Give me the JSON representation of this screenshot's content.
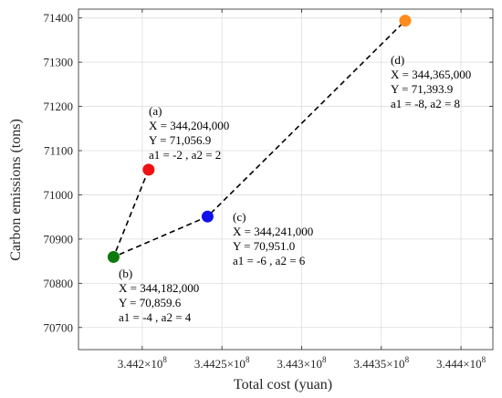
{
  "chart_data": {
    "type": "scatter",
    "xlabel": "Total cost (yuan)",
    "ylabel": "Carbon emissions (tons)",
    "xlim": [
      344160000,
      344420000
    ],
    "ylim": [
      70650,
      71420
    ],
    "grid": true,
    "x_ticks": [
      344200000,
      344250000,
      344300000,
      344350000,
      344400000
    ],
    "x_tick_labels": [
      {
        "mantissa": "3.442",
        "sup": "8"
      },
      {
        "mantissa": "3.4425",
        "sup": "8"
      },
      {
        "mantissa": "3.443",
        "sup": "8"
      },
      {
        "mantissa": "3.4435",
        "sup": "8"
      },
      {
        "mantissa": "3.444",
        "sup": "8"
      }
    ],
    "x_tick_times": "×10",
    "y_ticks": [
      70700,
      70800,
      70900,
      71000,
      71100,
      71200,
      71300,
      71400
    ],
    "y_tick_labels": [
      "70700",
      "70800",
      "70900",
      "71000",
      "71100",
      "71200",
      "71300",
      "71400"
    ],
    "line_style": "dashed",
    "path_order": [
      "a",
      "b",
      "c",
      "d"
    ],
    "points": [
      {
        "id": "a",
        "x": 344204000,
        "y": 71056.9,
        "color": "#ee1111",
        "lines": [
          "(a)",
          "X =   344,204,000",
          "Y =   71,056.9",
          "a1 = -2 , a2 = 2"
        ]
      },
      {
        "id": "b",
        "x": 344182000,
        "y": 70859.6,
        "color": "#0b7a0b",
        "lines": [
          "(b)",
          "X =   344,182,000",
          "Y =   70,859.6",
          "a1 = -4 , a2 = 4"
        ]
      },
      {
        "id": "c",
        "x": 344241000,
        "y": 70951.0,
        "color": "#1010ee",
        "lines": [
          "(c)",
          "X =   344,241,000",
          "Y =   70,951.0",
          "a1 = -6 , a2 = 6"
        ]
      },
      {
        "id": "d",
        "x": 344365000,
        "y": 71393.9,
        "color": "#ff8c1a",
        "lines": [
          "(d)",
          "X =   344,365,000",
          "Y =   71,393.9",
          "a1 = -8, a2 = 8"
        ]
      }
    ]
  }
}
